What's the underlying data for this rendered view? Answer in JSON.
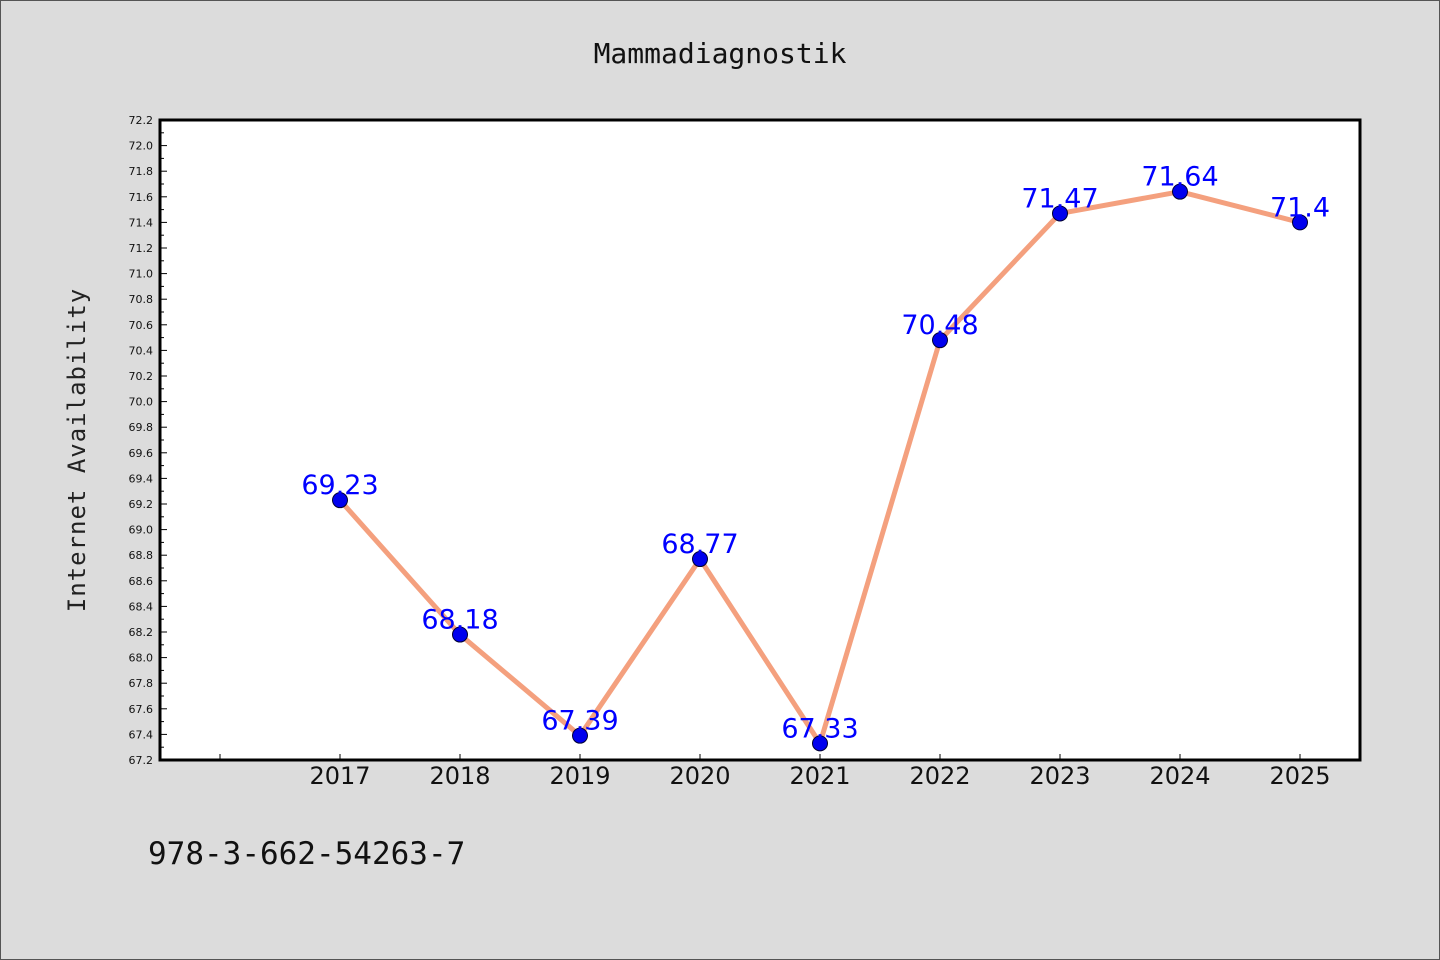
{
  "chart_data": {
    "type": "line",
    "title": "Mammadiagnostik",
    "xlabel": "",
    "ylabel": "Internet Availability",
    "categories": [
      "2017",
      "2018",
      "2019",
      "2020",
      "2021",
      "2022",
      "2023",
      "2024",
      "2025"
    ],
    "series": [
      {
        "values": [
          69.23,
          68.18,
          67.39,
          68.77,
          67.33,
          70.48,
          71.47,
          71.64,
          71.4
        ],
        "labels": [
          "69.23",
          "68.18",
          "67.39",
          "68.77",
          "67.33",
          "70.48",
          "71.47",
          "71.64",
          "71.4"
        ],
        "line_color": "#f4a07e",
        "marker_color": "#0000ee"
      }
    ],
    "ylim": [
      67.2,
      72.2
    ],
    "yticks": [
      "67.2",
      "67.4",
      "67.6",
      "67.8",
      "68.0",
      "68.2",
      "68.4",
      "68.6",
      "68.8",
      "69.0",
      "69.2",
      "69.4",
      "69.6",
      "69.8",
      "70.0",
      "70.2",
      "70.4",
      "70.6",
      "70.8",
      "71.0",
      "71.2",
      "71.4",
      "71.6",
      "71.8",
      "72.0",
      "72.2"
    ],
    "label_color": "#0000ff",
    "grid": false,
    "legend": "none"
  },
  "footer_note": "978-3-662-54263-7"
}
